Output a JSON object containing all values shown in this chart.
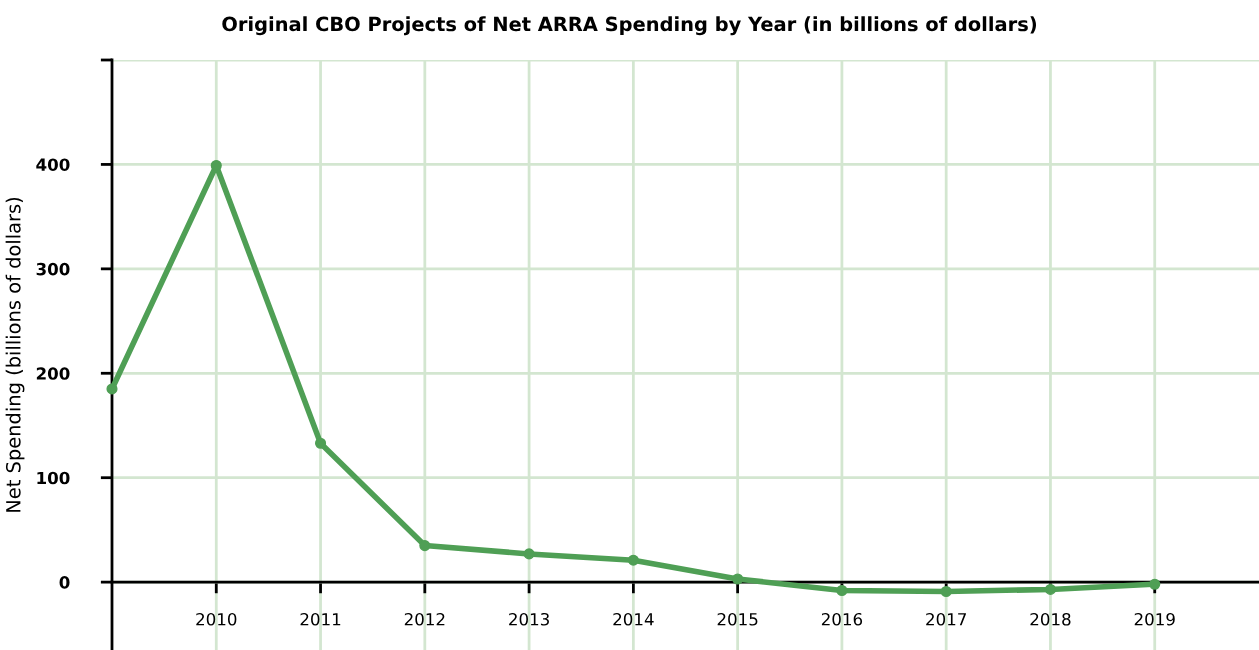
{
  "chart_data": {
    "type": "line",
    "title": "Original CBO Projects of Net ARRA Spending by Year (in billions of dollars)",
    "ylabel": "Net Spending (billions of dollars)",
    "x": [
      2009,
      2010,
      2011,
      2012,
      2013,
      2014,
      2015,
      2016,
      2017,
      2018,
      2019
    ],
    "series": [
      {
        "color": "#4f9f55",
        "values": [
          185,
          399,
          133,
          35,
          27,
          21,
          3,
          -8,
          -9,
          -7,
          -2
        ]
      }
    ],
    "xlim": [
      2009,
      2020
    ],
    "xticks": [
      {
        "value": 2010,
        "label": "2010"
      },
      {
        "value": 2011,
        "label": "2011"
      },
      {
        "value": 2012,
        "label": "2012"
      },
      {
        "value": 2013,
        "label": "2013"
      },
      {
        "value": 2014,
        "label": "2014"
      },
      {
        "value": 2015,
        "label": "2015"
      },
      {
        "value": 2016,
        "label": "2016"
      },
      {
        "value": 2017,
        "label": "2017"
      },
      {
        "value": 2018,
        "label": "2018"
      },
      {
        "value": 2019,
        "label": "2019"
      }
    ],
    "ylim": [
      -65,
      500
    ],
    "yticks": [
      0,
      100,
      200,
      300,
      400,
      {
        "value": 500,
        "label": null
      }
    ],
    "grid": true,
    "marker": "circle",
    "line_style": "solid"
  }
}
